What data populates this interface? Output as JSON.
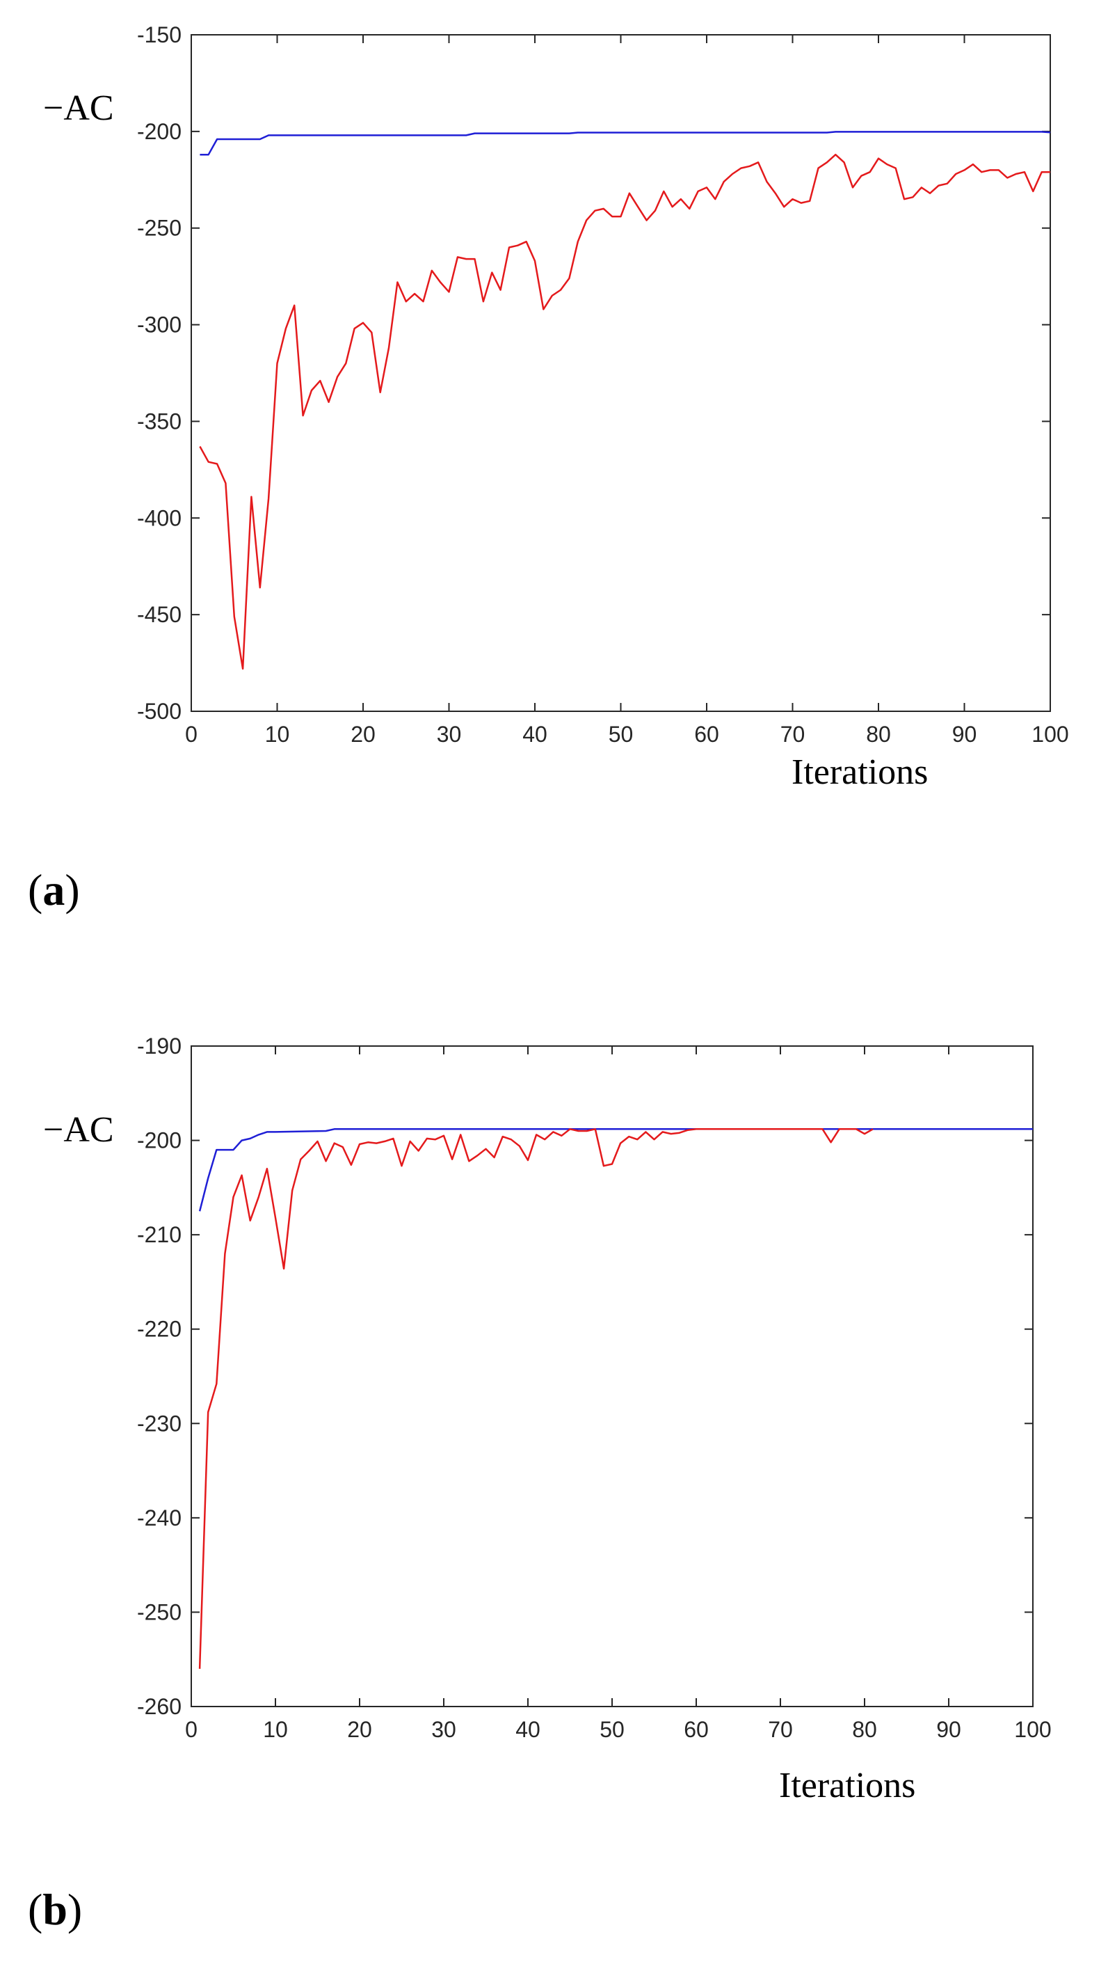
{
  "figure": {
    "panels": [
      {
        "label_open": "(",
        "label_letter": "a",
        "label_close": ")"
      },
      {
        "label_open": "(",
        "label_letter": "b",
        "label_close": ")"
      }
    ]
  },
  "colors": {
    "red_series": "#e41a1c",
    "blue_series": "#1f1fd6",
    "axes": "#262626"
  },
  "chart_data": [
    {
      "type": "line",
      "xlabel": "Iterations",
      "ylabel": "−AC",
      "xlim": [
        0,
        100
      ],
      "ylim": [
        -500,
        -150
      ],
      "xticks": [
        "0",
        "10",
        "20",
        "30",
        "40",
        "50",
        "60",
        "70",
        "80",
        "90",
        "100"
      ],
      "yticks": [
        "-150",
        "-200",
        "-250",
        "-300",
        "-350",
        "-400",
        "-450",
        "-500"
      ],
      "xtick_values": [
        0,
        10,
        20,
        30,
        40,
        50,
        60,
        70,
        80,
        90,
        100
      ],
      "ytick_values": [
        -150,
        -200,
        -250,
        -300,
        -350,
        -400,
        -450,
        -500
      ],
      "series": [
        {
          "color": "#1f1fd6",
          "x": [
            1,
            2,
            3,
            8,
            9,
            32,
            33,
            44,
            45,
            74,
            75,
            99,
            100
          ],
          "values": [
            -212,
            -212,
            -204,
            -204,
            -202,
            -202,
            -201,
            -201,
            -200.6,
            -200.6,
            -200.2,
            -200.2,
            -200.5
          ]
        },
        {
          "color": "#e41a1c",
          "x": [
            1,
            2,
            3,
            4,
            5,
            6,
            7,
            8,
            9,
            10,
            11,
            12,
            13,
            14,
            15,
            16,
            17,
            18,
            19,
            20,
            21,
            22,
            23,
            24,
            25,
            26,
            27,
            28,
            29,
            30,
            31,
            32,
            33,
            34,
            35,
            36,
            37,
            38,
            39,
            40,
            41,
            42,
            43,
            44,
            45,
            46,
            47,
            48,
            49,
            50,
            51,
            52,
            53,
            54,
            55,
            56,
            57,
            58,
            59,
            60,
            61,
            62,
            63,
            64,
            65,
            66,
            67,
            68,
            69,
            70,
            71,
            72,
            73,
            74,
            75,
            76,
            77,
            78,
            79,
            80,
            81,
            82,
            83,
            84,
            85,
            86,
            87,
            88,
            89,
            90,
            91,
            92,
            93,
            94,
            95,
            96,
            97,
            98,
            99,
            100
          ],
          "values": [
            -363,
            -371,
            -372,
            -382,
            -451,
            -478,
            -389,
            -436,
            -390,
            -320,
            -302,
            -290,
            -347,
            -334,
            -329,
            -340,
            -327,
            -320,
            -302,
            -299,
            -304,
            -335,
            -312,
            -278,
            -288,
            -284,
            -288,
            -272,
            -278,
            -283,
            -265,
            -266,
            -266,
            -288,
            -273,
            -282,
            -260,
            -259,
            -257,
            -267,
            -292,
            -285,
            -282,
            -276,
            -257,
            -246,
            -241,
            -240,
            -244,
            -244,
            -232,
            -239,
            -246,
            -241,
            -231,
            -239,
            -235,
            -240,
            -231,
            -229,
            -235,
            -226,
            -222,
            -219,
            -218,
            -216,
            -226,
            -232,
            -239,
            -235,
            -237,
            -236,
            -219,
            -216,
            -212,
            -216,
            -229,
            -223,
            -221,
            -214,
            -217,
            -219,
            -235,
            -234,
            -229,
            -232,
            -228,
            -227,
            -222,
            -220,
            -217,
            -221,
            -220,
            -220,
            -224,
            -222,
            -221,
            -231,
            -221,
            -221
          ]
        }
      ]
    },
    {
      "type": "line",
      "xlabel": "Iterations",
      "ylabel": "−AC",
      "xlim": [
        0,
        100
      ],
      "ylim": [
        -260,
        -190
      ],
      "xticks": [
        "0",
        "10",
        "20",
        "30",
        "40",
        "50",
        "60",
        "70",
        "80",
        "90",
        "100"
      ],
      "yticks": [
        "-190",
        "-200",
        "-210",
        "-220",
        "-230",
        "-240",
        "-250",
        "-260"
      ],
      "xtick_values": [
        0,
        10,
        20,
        30,
        40,
        50,
        60,
        70,
        80,
        90,
        100
      ],
      "ytick_values": [
        -190,
        -200,
        -210,
        -220,
        -230,
        -240,
        -250,
        -260
      ],
      "series": [
        {
          "color": "#1f1fd6",
          "x": [
            1,
            2,
            3,
            4,
            5,
            6,
            7,
            8,
            9,
            10,
            16,
            17,
            100
          ],
          "values": [
            -207.5,
            -204,
            -201,
            -201,
            -201,
            -200,
            -199.8,
            -199.4,
            -199.1,
            -199.1,
            -199,
            -198.8,
            -198.8
          ]
        },
        {
          "color": "#e41a1c",
          "x": [
            1,
            2,
            3,
            4,
            5,
            6,
            7,
            8,
            9,
            10,
            11,
            12,
            13,
            14,
            15,
            16,
            17,
            18,
            19,
            20,
            21,
            22,
            23,
            24,
            25,
            26,
            27,
            28,
            29,
            30,
            31,
            32,
            33,
            34,
            35,
            36,
            37,
            38,
            39,
            40,
            41,
            42,
            43,
            44,
            45,
            46,
            47,
            48,
            49,
            50,
            51,
            52,
            53,
            54,
            55,
            56,
            57,
            58,
            59,
            60,
            61,
            62,
            75,
            76,
            77,
            78,
            79,
            80,
            81
          ],
          "values": [
            -256,
            -228.8,
            -225.8,
            -212,
            -206,
            -203.7,
            -208.5,
            -206,
            -203,
            -208.2,
            -213.6,
            -205.3,
            -202,
            -201.1,
            -200.1,
            -202.2,
            -200.3,
            -200.7,
            -202.6,
            -200.4,
            -200.2,
            -200.3,
            -200.1,
            -199.8,
            -202.7,
            -200.1,
            -201.1,
            -199.8,
            -199.9,
            -199.5,
            -202,
            -199.4,
            -202.2,
            -201.6,
            -200.9,
            -201.8,
            -199.6,
            -199.9,
            -200.6,
            -202.1,
            -199.4,
            -199.9,
            -199.1,
            -199.5,
            -198.8,
            -199,
            -199,
            -198.8,
            -202.7,
            -202.5,
            -200.3,
            -199.6,
            -199.9,
            -199.1,
            -199.9,
            -199.1,
            -199.3,
            -199.2,
            -198.9,
            -198.8,
            -198.8,
            -198.8,
            -198.8,
            -200.2,
            -198.8,
            -198.8,
            -198.8,
            -199.3,
            -198.8
          ]
        }
      ]
    }
  ]
}
